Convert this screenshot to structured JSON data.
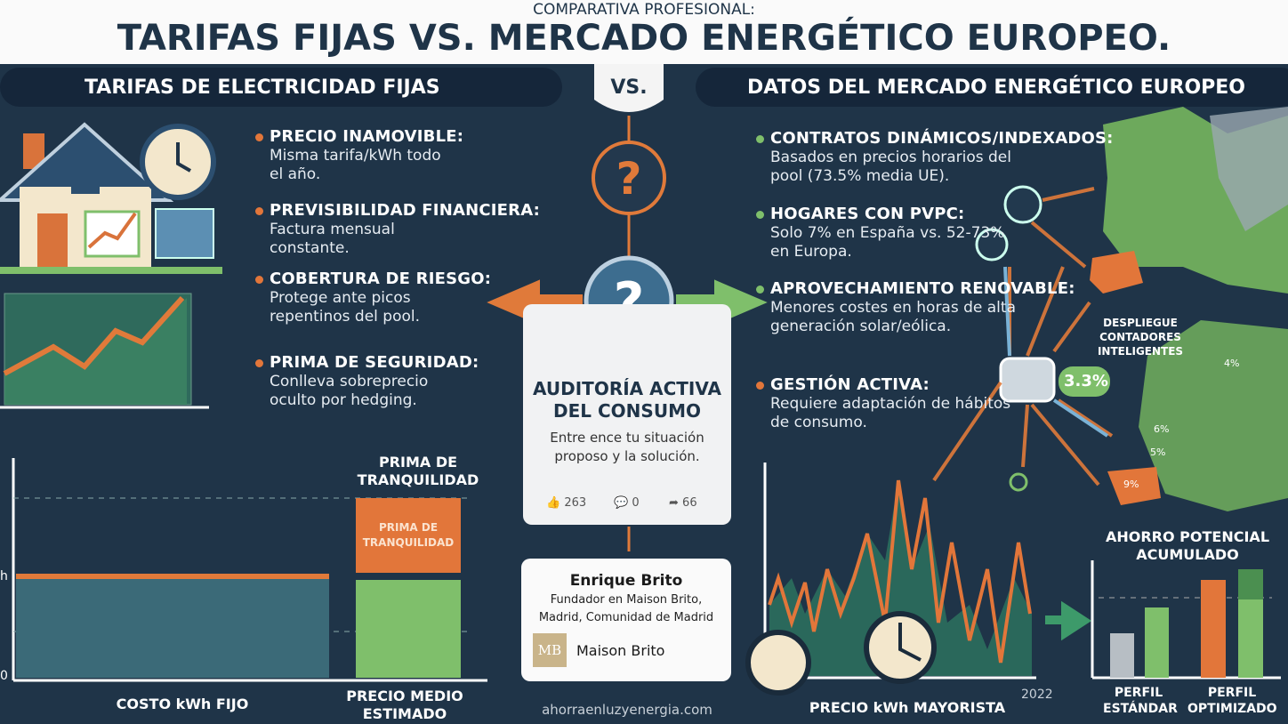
{
  "header": {
    "kicker": "COMPARATIVA PROFESIONAL:",
    "title": "TARIFAS FIJAS VS. MERCADO ENERGÉTICO EUROPEO."
  },
  "left": {
    "title": "TARIFAS DE ELECTRICIDAD FIJAS",
    "points": [
      {
        "heading": "PRECIO INAMOVIBLE:",
        "text": "Misma tarifa/kWh todo el año."
      },
      {
        "heading": "PREVISIBILIDAD FINANCIERA:",
        "text": "Factura mensual constante."
      },
      {
        "heading": "COBERTURA DE RIESGO:",
        "text": "Protege ante picos repentinos del pool."
      },
      {
        "heading": "PRIMA DE SEGURIDAD:",
        "text": "Conlleva sobreprecio oculto por hedging."
      }
    ],
    "chart": {
      "y_label_top": "h",
      "y_label_bottom": "0",
      "premium_title": "PRIMA DE TRANQUILIDAD",
      "premium_bar": "PRIMA DE TRANQUILIDAD",
      "categories": [
        "COSTO kWh FIJO",
        "PRECIO MEDIO ESTIMADO"
      ]
    }
  },
  "vs": "VS.",
  "right": {
    "title": "DATOS DEL MERCADO ENERGÉTICO EUROPEO",
    "points": [
      {
        "heading": "CONTRATOS DINÁMICOS/INDEXADOS:",
        "text": "Basados en precios horarios del pool (73.5% media UE)."
      },
      {
        "heading": "HOGARES CON PVPC:",
        "text": "Solo 7% en España vs. 52-73% en Europa."
      },
      {
        "heading": "APROVECHAMIENTO RENOVABLE:",
        "text": "Menores costes en horas de alta generación solar/eólica."
      },
      {
        "heading": "GESTIÓN ACTIVA:",
        "text": "Requiere adaptación de hábitos de consumo."
      }
    ],
    "map": {
      "label": "DESPLIEGUE CONTADORES INTELIGENTES",
      "meter_value": "3.3%",
      "region_labels": [
        "4%",
        "6%",
        "5%",
        "9%"
      ]
    },
    "price_chart": {
      "label": "PRECIO kWh MAYORISTA",
      "year": "2022"
    },
    "savings": {
      "title": "AHORRO POTENCIAL ACUMULADO",
      "categories": [
        "PERFIL ESTÁNDAR",
        "PERFIL OPTIMIZADO"
      ]
    }
  },
  "card": {
    "title": "AUDITORÍA ACTIVA DEL CONSUMO",
    "text": "Entre ence tu situación proposo y la solución.",
    "likes": "263",
    "comments": "0",
    "shares": "66"
  },
  "profile": {
    "name": "Enrique Brito",
    "role": "Fundador en Maison Brito, Madrid, Comunidad de Madrid",
    "logo": "MB",
    "company": "Maison Brito"
  },
  "website": "ahorraenluzyenergia.com"
}
